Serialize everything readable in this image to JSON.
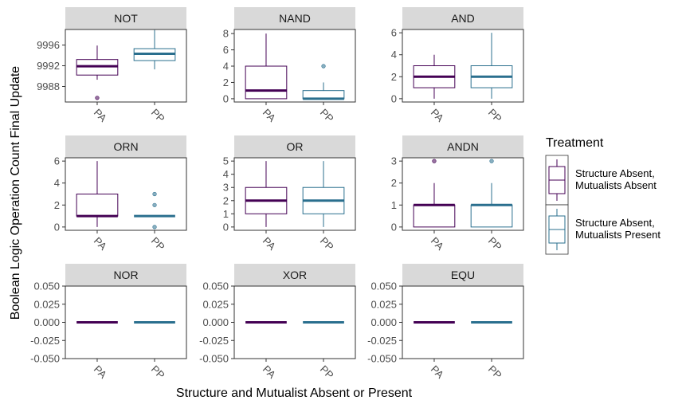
{
  "chart_data": {
    "type": "box",
    "xlabel": "Structure and Mutualist Absent or Present",
    "ylabel": "Boolean Logic Operation Count Final Update",
    "legend": {
      "title": "Treatment",
      "position": "right",
      "entries": [
        {
          "label_lines": [
            "Structure Absent,",
            "Mutualists Absent"
          ],
          "color": "#440154"
        },
        {
          "label_lines": [
            "Structure Absent,",
            "Mutualists Present"
          ],
          "color": "#2a6f8e"
        }
      ]
    },
    "facets": [
      {
        "name": "NOT",
        "ylim": [
          9985,
          9999
        ],
        "yticks": [
          9988,
          9992,
          9996
        ],
        "boxes": [
          {
            "category": "PA",
            "color": "#440154",
            "min": 9989.3,
            "q1": 9990.2,
            "median": 9991.9,
            "q3": 9993.2,
            "max": 9995.9,
            "outliers": [
              9985.8
            ]
          },
          {
            "category": "PP",
            "color": "#2a6f8e",
            "min": 9991.3,
            "q1": 9993.0,
            "median": 9994.3,
            "q3": 9995.3,
            "max": 9998.9,
            "outliers": []
          }
        ]
      },
      {
        "name": "NAND",
        "ylim": [
          -0.4,
          8.5
        ],
        "yticks": [
          0,
          2,
          4,
          6,
          8
        ],
        "boxes": [
          {
            "category": "PA",
            "color": "#440154",
            "min": 0,
            "q1": 0,
            "median": 1,
            "q3": 4,
            "max": 8,
            "outliers": []
          },
          {
            "category": "PP",
            "color": "#2a6f8e",
            "min": 0,
            "q1": 0,
            "median": 0,
            "q3": 1,
            "max": 2,
            "outliers": [
              4
            ]
          }
        ]
      },
      {
        "name": "AND",
        "ylim": [
          -0.3,
          6.3
        ],
        "yticks": [
          0,
          2,
          4,
          6
        ],
        "boxes": [
          {
            "category": "PA",
            "color": "#440154",
            "min": 0,
            "q1": 1,
            "median": 2,
            "q3": 3,
            "max": 4,
            "outliers": []
          },
          {
            "category": "PP",
            "color": "#2a6f8e",
            "min": 0,
            "q1": 1,
            "median": 2,
            "q3": 3,
            "max": 6,
            "outliers": []
          }
        ]
      },
      {
        "name": "ORN",
        "ylim": [
          -0.3,
          6.3
        ],
        "yticks": [
          0,
          2,
          4,
          6
        ],
        "boxes": [
          {
            "category": "PA",
            "color": "#440154",
            "min": 0,
            "q1": 1,
            "median": 1,
            "q3": 3,
            "max": 6,
            "outliers": []
          },
          {
            "category": "PP",
            "color": "#2a6f8e",
            "min": 1,
            "q1": 1,
            "median": 1,
            "q3": 1,
            "max": 1,
            "outliers": [
              0,
              2,
              3
            ]
          }
        ]
      },
      {
        "name": "OR",
        "ylim": [
          -0.25,
          5.25
        ],
        "yticks": [
          0,
          1,
          2,
          3,
          4,
          5
        ],
        "boxes": [
          {
            "category": "PA",
            "color": "#440154",
            "min": 0,
            "q1": 1,
            "median": 2,
            "q3": 3,
            "max": 5,
            "outliers": []
          },
          {
            "category": "PP",
            "color": "#2a6f8e",
            "min": 0,
            "q1": 1,
            "median": 2,
            "q3": 3,
            "max": 5,
            "outliers": []
          }
        ]
      },
      {
        "name": "ANDN",
        "ylim": [
          -0.15,
          3.15
        ],
        "yticks": [
          0,
          1,
          2,
          3
        ],
        "boxes": [
          {
            "category": "PA",
            "color": "#440154",
            "min": 0,
            "q1": 0,
            "median": 1,
            "q3": 1,
            "max": 2,
            "outliers": [
              3
            ]
          },
          {
            "category": "PP",
            "color": "#2a6f8e",
            "min": 0,
            "q1": 0,
            "median": 1,
            "q3": 1,
            "max": 2,
            "outliers": [
              3
            ]
          }
        ]
      },
      {
        "name": "NOR",
        "ylim": [
          -0.05,
          0.05
        ],
        "yticks": [
          "0.050",
          "0.025",
          "0.000",
          "-0.025",
          "-0.050"
        ],
        "boxes": [
          {
            "category": "PA",
            "color": "#440154",
            "min": 0,
            "q1": 0,
            "median": 0,
            "q3": 0,
            "max": 0,
            "outliers": []
          },
          {
            "category": "PP",
            "color": "#2a6f8e",
            "min": 0,
            "q1": 0,
            "median": 0,
            "q3": 0,
            "max": 0,
            "outliers": []
          }
        ]
      },
      {
        "name": "XOR",
        "ylim": [
          -0.05,
          0.05
        ],
        "yticks": [
          "0.050",
          "0.025",
          "0.000",
          "-0.025",
          "-0.050"
        ],
        "boxes": [
          {
            "category": "PA",
            "color": "#440154",
            "min": 0,
            "q1": 0,
            "median": 0,
            "q3": 0,
            "max": 0,
            "outliers": []
          },
          {
            "category": "PP",
            "color": "#2a6f8e",
            "min": 0,
            "q1": 0,
            "median": 0,
            "q3": 0,
            "max": 0,
            "outliers": []
          }
        ]
      },
      {
        "name": "EQU",
        "ylim": [
          -0.05,
          0.05
        ],
        "yticks": [
          "0.050",
          "0.025",
          "0.000",
          "-0.025",
          "-0.050"
        ],
        "boxes": [
          {
            "category": "PA",
            "color": "#440154",
            "min": 0,
            "q1": 0,
            "median": 0,
            "q3": 0,
            "max": 0,
            "outliers": []
          },
          {
            "category": "PP",
            "color": "#2a6f8e",
            "min": 0,
            "q1": 0,
            "median": 0,
            "q3": 0,
            "max": 0,
            "outliers": []
          }
        ]
      }
    ]
  }
}
